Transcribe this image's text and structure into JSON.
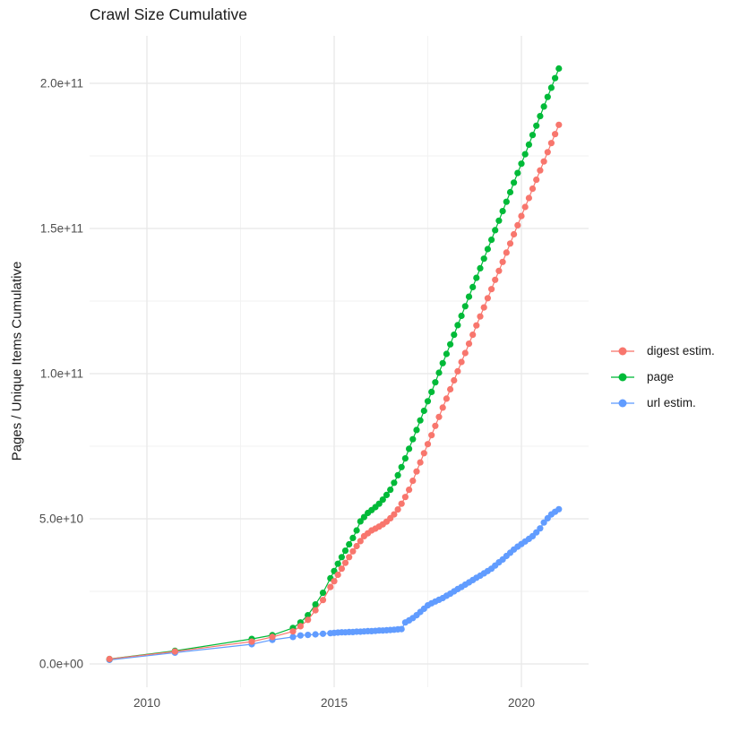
{
  "figure": {
    "title": "Crawl Size Cumulative",
    "y_axis_title": "Pages / Unique Items Cumulative"
  },
  "chart_data": {
    "type": "scatter",
    "title": "Crawl Size Cumulative",
    "xlabel": "",
    "ylabel": "Pages / Unique Items Cumulative",
    "legend_position": "right",
    "grid": true,
    "point_style": "filled-circle connected by thin line",
    "value_unit": "pages, stored in billions (1e9)",
    "axes": {
      "xlim": [
        2008.5,
        2021.8
      ],
      "ylim_bill；ions": [
        -8,
        216
      ],
      "x_ticks": [
        {
          "value": 2010,
          "label": "2010"
        },
        {
          "value": 2015,
          "label": "2015"
        },
        {
          "value": 2020,
          "label": "2020"
        }
      ],
      "x_minor": [
        2012.5,
        2017.5
      ],
      "y_ticks": [
        {
          "value": 0,
          "label": "0.0e+00"
        },
        {
          "value": 50,
          "label": "5.0e+10"
        },
        {
          "value": 100,
          "label": "1.0e+11"
        },
        {
          "value": 150,
          "label": "1.5e+11"
        },
        {
          "value": 200,
          "label": "2.0e+11"
        }
      ],
      "y_minor": [
        25,
        75,
        125,
        175
      ]
    },
    "style": {
      "grid_major_color": "#E8E8E8",
      "grid_minor_color": "#F2F2F2",
      "tick_text_color": "#4D4D4D",
      "background": "#FFFFFF"
    },
    "draw_order": [
      2,
      1,
      0
    ],
    "series": [
      {
        "name": "digest estim.",
        "color": "#F8766D",
        "points": [
          [
            2009.0,
            1.7
          ],
          [
            2010.75,
            4.3
          ],
          [
            2012.8,
            7.7
          ],
          [
            2013.35,
            9.3
          ],
          [
            2013.9,
            11.2
          ],
          [
            2014.1,
            13.0
          ],
          [
            2014.3,
            15.2
          ],
          [
            2014.5,
            18.5
          ],
          [
            2014.7,
            22.0
          ],
          [
            2014.9,
            26.5
          ],
          [
            2015.0,
            28.5
          ],
          [
            2015.1,
            30.7
          ],
          [
            2015.2,
            32.8
          ],
          [
            2015.3,
            34.8
          ],
          [
            2015.4,
            36.8
          ],
          [
            2015.5,
            38.8
          ],
          [
            2015.6,
            40.6
          ],
          [
            2015.7,
            42.3
          ],
          [
            2015.8,
            44.0
          ],
          [
            2015.9,
            45.0
          ],
          [
            2016.0,
            46.0
          ],
          [
            2016.1,
            46.6
          ],
          [
            2016.2,
            47.3
          ],
          [
            2016.3,
            48.1
          ],
          [
            2016.4,
            49.0
          ],
          [
            2016.5,
            50.2
          ],
          [
            2016.6,
            51.5
          ],
          [
            2016.7,
            53.2
          ],
          [
            2016.8,
            55.2
          ],
          [
            2016.9,
            57.5
          ],
          [
            2017.0,
            60.0
          ],
          [
            2017.1,
            63.1
          ],
          [
            2017.2,
            66.3
          ],
          [
            2017.3,
            69.4
          ],
          [
            2017.4,
            72.6
          ],
          [
            2017.5,
            75.7
          ],
          [
            2017.6,
            78.8
          ],
          [
            2017.7,
            82.0
          ],
          [
            2017.8,
            85.1
          ],
          [
            2017.9,
            88.3
          ],
          [
            2018.0,
            91.4
          ],
          [
            2018.1,
            94.6
          ],
          [
            2018.2,
            97.7
          ],
          [
            2018.3,
            100.8
          ],
          [
            2018.4,
            104.0
          ],
          [
            2018.5,
            107.1
          ],
          [
            2018.6,
            110.3
          ],
          [
            2018.7,
            113.4
          ],
          [
            2018.8,
            116.6
          ],
          [
            2018.9,
            119.7
          ],
          [
            2019.0,
            122.8
          ],
          [
            2019.1,
            126.0
          ],
          [
            2019.2,
            129.1
          ],
          [
            2019.3,
            132.3
          ],
          [
            2019.4,
            135.4
          ],
          [
            2019.5,
            138.5
          ],
          [
            2019.6,
            141.7
          ],
          [
            2019.7,
            144.8
          ],
          [
            2019.8,
            148.0
          ],
          [
            2019.9,
            151.1
          ],
          [
            2020.0,
            154.3
          ],
          [
            2020.1,
            157.4
          ],
          [
            2020.2,
            160.5
          ],
          [
            2020.3,
            163.7
          ],
          [
            2020.4,
            166.8
          ],
          [
            2020.5,
            170.0
          ],
          [
            2020.6,
            173.1
          ],
          [
            2020.7,
            176.3
          ],
          [
            2020.8,
            179.4
          ],
          [
            2020.9,
            182.5
          ],
          [
            2021.0,
            185.7
          ]
        ]
      },
      {
        "name": "page",
        "color": "#00BA38",
        "points": [
          [
            2009.0,
            1.7
          ],
          [
            2010.75,
            4.5
          ],
          [
            2012.8,
            8.6
          ],
          [
            2013.35,
            9.9
          ],
          [
            2013.9,
            12.4
          ],
          [
            2014.1,
            14.3
          ],
          [
            2014.3,
            16.8
          ],
          [
            2014.5,
            20.5
          ],
          [
            2014.7,
            24.5
          ],
          [
            2014.9,
            29.5
          ],
          [
            2015.0,
            32.0
          ],
          [
            2015.1,
            34.5
          ],
          [
            2015.2,
            36.8
          ],
          [
            2015.3,
            39.0
          ],
          [
            2015.4,
            41.2
          ],
          [
            2015.5,
            43.4
          ],
          [
            2015.6,
            46.0
          ],
          [
            2015.7,
            49.1
          ],
          [
            2015.8,
            50.6
          ],
          [
            2015.9,
            52.0
          ],
          [
            2016.0,
            53.0
          ],
          [
            2016.1,
            54.0
          ],
          [
            2016.2,
            55.2
          ],
          [
            2016.3,
            56.6
          ],
          [
            2016.4,
            58.2
          ],
          [
            2016.5,
            60.0
          ],
          [
            2016.6,
            62.4
          ],
          [
            2016.7,
            65.0
          ],
          [
            2016.8,
            67.8
          ],
          [
            2016.9,
            70.8
          ],
          [
            2017.0,
            74.1
          ],
          [
            2017.1,
            77.4
          ],
          [
            2017.2,
            80.6
          ],
          [
            2017.3,
            83.9
          ],
          [
            2017.4,
            87.2
          ],
          [
            2017.5,
            90.5
          ],
          [
            2017.6,
            93.7
          ],
          [
            2017.7,
            97.0
          ],
          [
            2017.8,
            100.3
          ],
          [
            2017.9,
            103.6
          ],
          [
            2018.0,
            106.8
          ],
          [
            2018.1,
            110.1
          ],
          [
            2018.2,
            113.4
          ],
          [
            2018.3,
            116.7
          ],
          [
            2018.4,
            119.9
          ],
          [
            2018.5,
            123.2
          ],
          [
            2018.6,
            126.5
          ],
          [
            2018.7,
            129.8
          ],
          [
            2018.8,
            133.0
          ],
          [
            2018.9,
            136.3
          ],
          [
            2019.0,
            139.6
          ],
          [
            2019.1,
            142.9
          ],
          [
            2019.2,
            146.1
          ],
          [
            2019.3,
            149.4
          ],
          [
            2019.4,
            152.7
          ],
          [
            2019.5,
            156.0
          ],
          [
            2019.6,
            159.2
          ],
          [
            2019.7,
            162.5
          ],
          [
            2019.8,
            165.8
          ],
          [
            2019.9,
            169.1
          ],
          [
            2020.0,
            172.3
          ],
          [
            2020.1,
            175.6
          ],
          [
            2020.2,
            178.9
          ],
          [
            2020.3,
            182.2
          ],
          [
            2020.4,
            185.4
          ],
          [
            2020.5,
            188.7
          ],
          [
            2020.6,
            192.0
          ],
          [
            2020.7,
            195.3
          ],
          [
            2020.8,
            198.5
          ],
          [
            2020.9,
            201.8
          ],
          [
            2021.0,
            205.1
          ]
        ]
      },
      {
        "name": "url estim.",
        "color": "#619CFF",
        "points": [
          [
            2009.0,
            1.4
          ],
          [
            2010.75,
            3.9
          ],
          [
            2012.8,
            6.8
          ],
          [
            2013.35,
            8.3
          ],
          [
            2013.9,
            9.3
          ],
          [
            2014.1,
            9.8
          ],
          [
            2014.3,
            10.0
          ],
          [
            2014.5,
            10.2
          ],
          [
            2014.7,
            10.4
          ],
          [
            2014.9,
            10.6
          ],
          [
            2015.0,
            10.7
          ],
          [
            2015.1,
            10.8
          ],
          [
            2015.2,
            10.9
          ],
          [
            2015.3,
            10.9
          ],
          [
            2015.4,
            11.0
          ],
          [
            2015.5,
            11.0
          ],
          [
            2015.6,
            11.1
          ],
          [
            2015.7,
            11.1
          ],
          [
            2015.8,
            11.2
          ],
          [
            2015.9,
            11.3
          ],
          [
            2016.0,
            11.3
          ],
          [
            2016.1,
            11.4
          ],
          [
            2016.2,
            11.5
          ],
          [
            2016.3,
            11.5
          ],
          [
            2016.4,
            11.6
          ],
          [
            2016.5,
            11.7
          ],
          [
            2016.6,
            11.8
          ],
          [
            2016.7,
            11.9
          ],
          [
            2016.8,
            12.0
          ],
          [
            2016.9,
            14.3
          ],
          [
            2017.0,
            15.0
          ],
          [
            2017.1,
            15.8
          ],
          [
            2017.2,
            16.8
          ],
          [
            2017.3,
            17.9
          ],
          [
            2017.4,
            19.0
          ],
          [
            2017.5,
            20.2
          ],
          [
            2017.6,
            20.9
          ],
          [
            2017.7,
            21.5
          ],
          [
            2017.8,
            22.1
          ],
          [
            2017.9,
            22.7
          ],
          [
            2018.0,
            23.5
          ],
          [
            2018.1,
            24.2
          ],
          [
            2018.2,
            25.0
          ],
          [
            2018.3,
            25.8
          ],
          [
            2018.4,
            26.5
          ],
          [
            2018.5,
            27.3
          ],
          [
            2018.6,
            28.1
          ],
          [
            2018.7,
            28.9
          ],
          [
            2018.8,
            29.7
          ],
          [
            2018.9,
            30.4
          ],
          [
            2019.0,
            31.2
          ],
          [
            2019.1,
            32.0
          ],
          [
            2019.2,
            32.8
          ],
          [
            2019.3,
            33.9
          ],
          [
            2019.4,
            35.0
          ],
          [
            2019.5,
            36.0
          ],
          [
            2019.6,
            37.2
          ],
          [
            2019.7,
            38.3
          ],
          [
            2019.8,
            39.4
          ],
          [
            2019.9,
            40.4
          ],
          [
            2020.0,
            41.3
          ],
          [
            2020.1,
            42.2
          ],
          [
            2020.2,
            43.1
          ],
          [
            2020.3,
            44.0
          ],
          [
            2020.4,
            45.3
          ],
          [
            2020.5,
            46.7
          ],
          [
            2020.6,
            48.7
          ],
          [
            2020.7,
            50.2
          ],
          [
            2020.8,
            51.5
          ],
          [
            2020.9,
            52.4
          ],
          [
            2021.0,
            53.3
          ]
        ]
      }
    ]
  }
}
